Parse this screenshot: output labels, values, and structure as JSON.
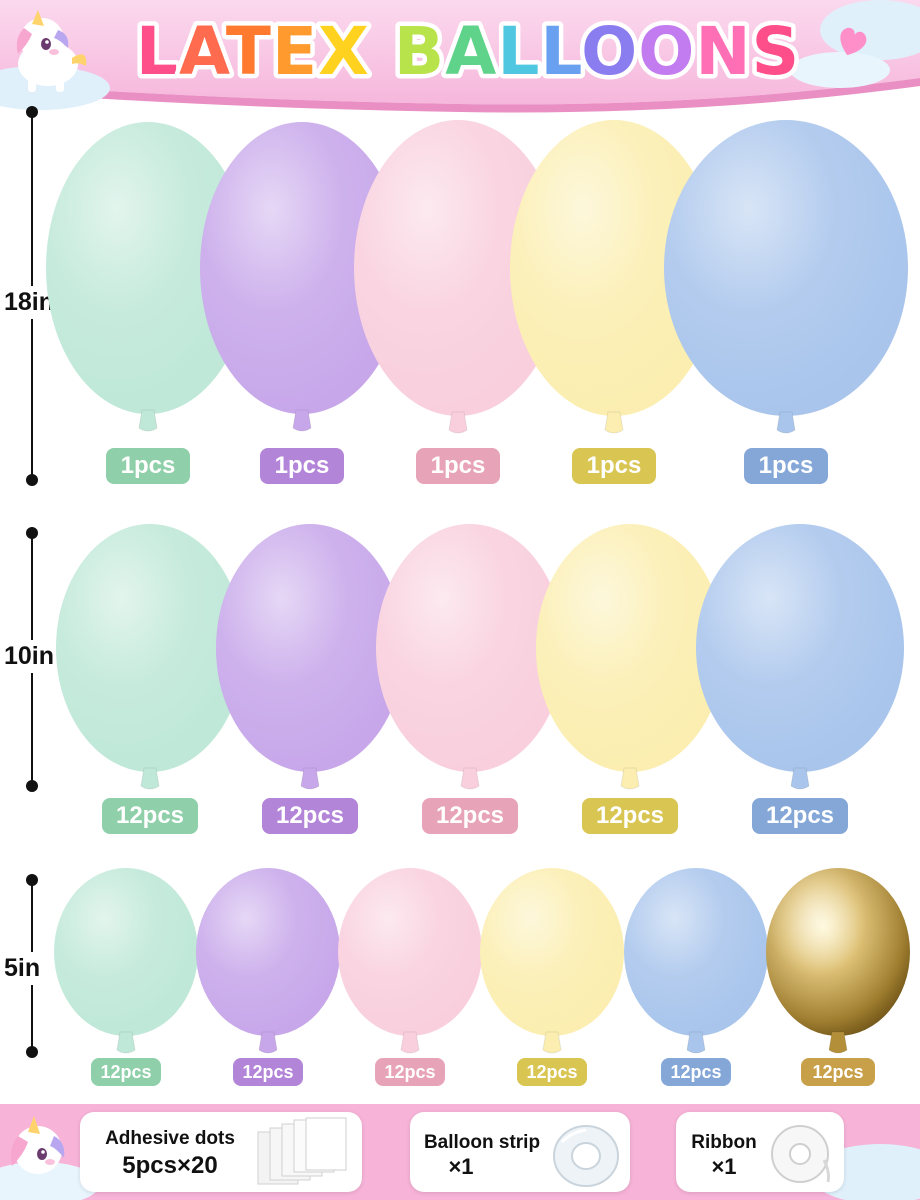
{
  "header": {
    "title": "LATEX BALLOONS",
    "letter_colors": [
      "#ff4f8b",
      "#ff6b4f",
      "#ff7a2f",
      "#ff9a2f",
      "#ffd21f",
      "#b9e34a",
      "#5fd38a",
      "#4fc7e0",
      "#6aa0f0",
      "#8a7df0",
      "#c27cf0",
      "#ff6fb5",
      "#ff4f8b",
      "#ff6b9a"
    ]
  },
  "balloon_colors": {
    "mint": "#bfe8d8",
    "purple": "#c7a7ea",
    "pink": "#f9cfdd",
    "yellow": "#fbeeb0",
    "blue": "#a9c5ec",
    "gold": "#c9a84f"
  },
  "rows": [
    {
      "size_label": "18in",
      "items": [
        {
          "color": "mint",
          "count": "1pcs",
          "pill_color": "#8fcfa9"
        },
        {
          "color": "purple",
          "count": "1pcs",
          "pill_color": "#b285d8"
        },
        {
          "color": "pink",
          "count": "1pcs",
          "pill_color": "#e7a3b8"
        },
        {
          "color": "yellow",
          "count": "1pcs",
          "pill_color": "#d8c552"
        },
        {
          "color": "blue",
          "count": "1pcs",
          "pill_color": "#84a7d8"
        }
      ]
    },
    {
      "size_label": "10in",
      "items": [
        {
          "color": "mint",
          "count": "12pcs",
          "pill_color": "#8fcfa9"
        },
        {
          "color": "purple",
          "count": "12pcs",
          "pill_color": "#b285d8"
        },
        {
          "color": "pink",
          "count": "12pcs",
          "pill_color": "#e7a3b8"
        },
        {
          "color": "yellow",
          "count": "12pcs",
          "pill_color": "#d8c552"
        },
        {
          "color": "blue",
          "count": "12pcs",
          "pill_color": "#84a7d8"
        }
      ]
    },
    {
      "size_label": "5in",
      "items": [
        {
          "color": "mint",
          "count": "12pcs",
          "pill_color": "#8fcfa9"
        },
        {
          "color": "purple",
          "count": "12pcs",
          "pill_color": "#b285d8"
        },
        {
          "color": "pink",
          "count": "12pcs",
          "pill_color": "#e7a3b8"
        },
        {
          "color": "yellow",
          "count": "12pcs",
          "pill_color": "#d8c552"
        },
        {
          "color": "blue",
          "count": "12pcs",
          "pill_color": "#84a7d8"
        },
        {
          "color": "gold",
          "count": "12pcs",
          "pill_color": "#c9a04a"
        }
      ]
    }
  ],
  "accessories": [
    {
      "name": "Adhesive dots",
      "qty": "5pcs×20",
      "icon": "adhesive-sheets-icon"
    },
    {
      "name": "Balloon strip",
      "qty": "×1",
      "icon": "tape-roll-icon"
    },
    {
      "name": "Ribbon",
      "qty": "×1",
      "icon": "ribbon-roll-icon"
    }
  ],
  "theme": {
    "banner_pink": "#f4a3cf",
    "banner_light": "#fbd6ea",
    "cloud": "#dff0fb"
  }
}
